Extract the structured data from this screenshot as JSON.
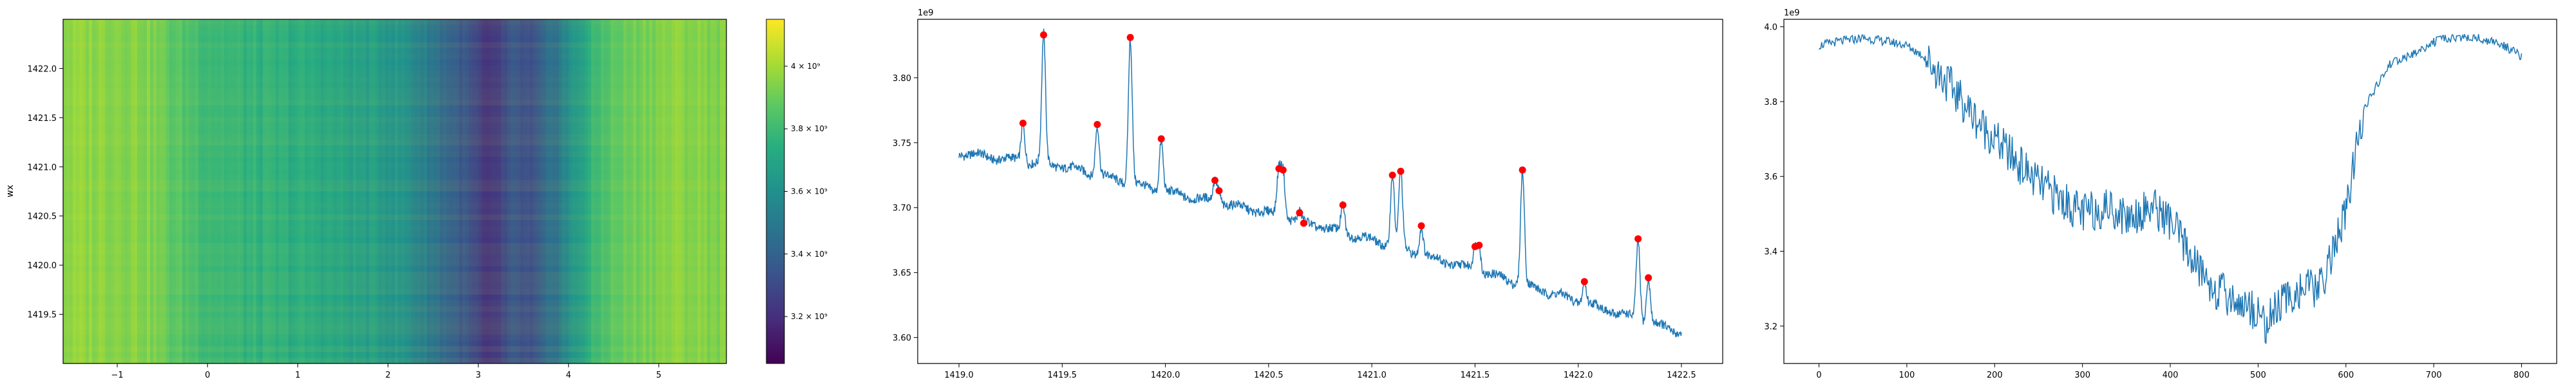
{
  "chart_data": [
    {
      "type": "heatmap",
      "title": "",
      "xlabel": "",
      "ylabel": "wx",
      "xlim": [
        -1.6,
        5.75
      ],
      "ylim": [
        1419.0,
        1422.5
      ],
      "x_ticks": [
        -1,
        0,
        1,
        2,
        3,
        4,
        5
      ],
      "x_tick_labels": [
        "−1",
        "0",
        "1",
        "2",
        "3",
        "4",
        "5"
      ],
      "y_ticks": [
        1419.5,
        1420.0,
        1420.5,
        1421.0,
        1421.5,
        1422.0
      ],
      "y_tick_labels": [
        "1419.5",
        "1420.0",
        "1420.5",
        "1421.0",
        "1421.5",
        "1422.0"
      ],
      "colormap": "viridis",
      "column_profile": {
        "x": [
          -1.6,
          -1.2,
          -0.8,
          -0.6,
          -0.4,
          0.0,
          0.4,
          0.8,
          1.2,
          1.6,
          2.0,
          2.2,
          2.4,
          2.6,
          2.8,
          3.0,
          3.1,
          3.2,
          3.4,
          3.6,
          3.8,
          4.0,
          4.2,
          4.4,
          4.8,
          5.2,
          5.75
        ],
        "values": [
          3960000000.0,
          3960000000.0,
          3950000000.0,
          3930000000.0,
          3860000000.0,
          3800000000.0,
          3760000000.0,
          3740000000.0,
          3720000000.0,
          3680000000.0,
          3640000000.0,
          3600000000.0,
          3520000000.0,
          3440000000.0,
          3360000000.0,
          3260000000.0,
          3180000000.0,
          3240000000.0,
          3340000000.0,
          3300000000.0,
          3440000000.0,
          3580000000.0,
          3720000000.0,
          3840000000.0,
          3920000000.0,
          3950000000.0,
          3930000000.0
        ]
      },
      "colorbar": {
        "range": [
          3050000000.0,
          4150000000.0
        ],
        "ticks": [
          3200000000.0,
          3400000000.0,
          3600000000.0,
          3800000000.0,
          4000000000.0
        ],
        "tick_labels": [
          "3.2 × 10⁹",
          "3.4 × 10⁹",
          "3.6 × 10⁹",
          "3.8 × 10⁹",
          "4 × 10⁹"
        ]
      },
      "grid": false
    },
    {
      "type": "line",
      "title": "",
      "xlabel": "",
      "ylabel": "",
      "offset_text": "1e9",
      "xlim": [
        1418.8,
        1422.7
      ],
      "ylim": [
        3.58,
        3.845
      ],
      "x_ticks": [
        1419.0,
        1419.5,
        1420.0,
        1420.5,
        1421.0,
        1421.5,
        1422.0,
        1422.5
      ],
      "x_tick_labels": [
        "1419.0",
        "1419.5",
        "1420.0",
        "1420.5",
        "1421.0",
        "1421.5",
        "1422.0",
        "1422.5"
      ],
      "y_ticks": [
        3.6,
        3.65,
        3.7,
        3.75,
        3.8
      ],
      "y_tick_labels": [
        "3.60",
        "3.65",
        "3.70",
        "3.75",
        "3.80"
      ],
      "baseline": {
        "x": [
          1419.0,
          1419.5,
          1420.0,
          1420.5,
          1421.0,
          1421.5,
          1422.0,
          1422.5
        ],
        "y": [
          3.742,
          3.732,
          3.712,
          3.696,
          3.675,
          3.652,
          3.628,
          3.604
        ]
      },
      "peaks": [
        {
          "x": 1419.31,
          "y": 3.765
        },
        {
          "x": 1419.41,
          "y": 3.833
        },
        {
          "x": 1419.67,
          "y": 3.764
        },
        {
          "x": 1419.83,
          "y": 3.831
        },
        {
          "x": 1419.98,
          "y": 3.753
        },
        {
          "x": 1420.24,
          "y": 3.721
        },
        {
          "x": 1420.26,
          "y": 3.713
        },
        {
          "x": 1420.55,
          "y": 3.73
        },
        {
          "x": 1420.57,
          "y": 3.729
        },
        {
          "x": 1420.65,
          "y": 3.696
        },
        {
          "x": 1420.67,
          "y": 3.688
        },
        {
          "x": 1420.86,
          "y": 3.702
        },
        {
          "x": 1421.1,
          "y": 3.725
        },
        {
          "x": 1421.14,
          "y": 3.728
        },
        {
          "x": 1421.24,
          "y": 3.686
        },
        {
          "x": 1421.5,
          "y": 3.67
        },
        {
          "x": 1421.52,
          "y": 3.671
        },
        {
          "x": 1421.73,
          "y": 3.729
        },
        {
          "x": 1422.03,
          "y": 3.643
        },
        {
          "x": 1422.29,
          "y": 3.676
        },
        {
          "x": 1422.34,
          "y": 3.646
        }
      ],
      "series_color": "#1f77b4",
      "marker_color": "#ff0000",
      "grid": false
    },
    {
      "type": "line",
      "title": "",
      "xlabel": "",
      "ylabel": "",
      "offset_text": "1e9",
      "xlim": [
        -40,
        840
      ],
      "ylim": [
        3.1,
        4.02
      ],
      "x_ticks": [
        0,
        100,
        200,
        300,
        400,
        500,
        600,
        700,
        800
      ],
      "x_tick_labels": [
        "0",
        "100",
        "200",
        "300",
        "400",
        "500",
        "600",
        "700",
        "800"
      ],
      "y_ticks": [
        3.2,
        3.4,
        3.6,
        3.8,
        4.0
      ],
      "y_tick_labels": [
        "3.2",
        "3.4",
        "3.6",
        "3.8",
        "4.0"
      ],
      "trend": {
        "x": [
          0,
          20,
          50,
          80,
          100,
          120,
          150,
          180,
          200,
          250,
          300,
          330,
          350,
          380,
          400,
          430,
          450,
          480,
          500,
          510,
          520,
          550,
          570,
          600,
          620,
          650,
          680,
          700,
          720,
          750,
          780,
          800
        ],
        "y": [
          3.95,
          3.96,
          3.97,
          3.96,
          3.95,
          3.92,
          3.84,
          3.75,
          3.7,
          3.58,
          3.5,
          3.52,
          3.49,
          3.52,
          3.48,
          3.36,
          3.3,
          3.26,
          3.24,
          3.2,
          3.25,
          3.3,
          3.3,
          3.5,
          3.78,
          3.9,
          3.93,
          3.96,
          3.97,
          3.97,
          3.95,
          3.92
        ]
      },
      "series_color": "#1f77b4",
      "grid": false
    }
  ]
}
